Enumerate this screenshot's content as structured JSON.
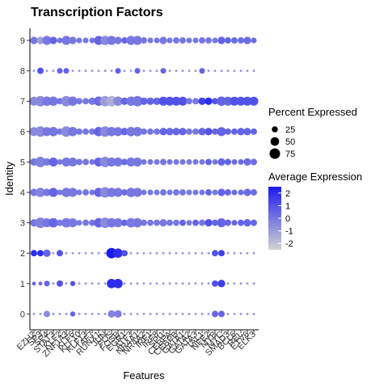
{
  "chart_data": {
    "type": "scatter",
    "subtype": "dot-plot",
    "title": "Transcription Factors",
    "xlabel": "Features",
    "ylabel": "Identity",
    "identities": [
      "0",
      "1",
      "2",
      "3",
      "4",
      "5",
      "6",
      "7",
      "8",
      "9"
    ],
    "features": [
      "EZH2",
      "SP3",
      "SP4",
      "STAT3",
      "KLF2",
      "ZNF143",
      "KLF6",
      "KLF10",
      "KLF13",
      "TAF7",
      "RUNX1",
      "JUN",
      "FOS",
      "FOSB",
      "EGR1",
      "ATF3",
      "NR4A1",
      "NR4A2",
      "IRF1",
      "IRF8",
      "SPI1",
      "CEBPA",
      "CEBPB",
      "GATA1",
      "GATA2",
      "GATA3",
      "TAL1",
      "NFE2",
      "MYB",
      "MYC",
      "SMAD3",
      "BCL6",
      "REL",
      "ETV6",
      "ELK3"
    ],
    "color_scale": {
      "min": -2.5,
      "max": 2.5,
      "low": "#d3d3d3",
      "high": "#1a1aef"
    },
    "size_legend": {
      "title": "Percent Expressed",
      "values": [
        25,
        50,
        75
      ]
    },
    "color_legend": {
      "title": "Average Expression",
      "ticks": [
        2,
        1,
        0,
        -1,
        -2
      ]
    },
    "rows": {
      "0": {
        "pct": [
          4,
          4,
          28,
          4,
          4,
          4,
          18,
          4,
          4,
          4,
          4,
          4,
          38,
          38,
          4,
          4,
          4,
          4,
          4,
          4,
          4,
          4,
          4,
          4,
          4,
          4,
          4,
          4,
          28,
          28,
          4,
          4,
          4,
          4,
          4
        ],
        "avg": [
          -1,
          -1,
          -0.5,
          -1,
          -1,
          -1,
          0.5,
          -1,
          -1,
          -1,
          -1,
          -1,
          -0.3,
          -0.2,
          -1,
          -1,
          -1,
          -1,
          -1,
          -1,
          -1,
          -1,
          -1,
          -1,
          -1,
          -1,
          -1,
          -1,
          0.5,
          0.5,
          -1,
          -1,
          -1,
          -1,
          -1
        ]
      },
      "1": {
        "pct": [
          10,
          10,
          22,
          4,
          28,
          4,
          18,
          4,
          4,
          4,
          4,
          4,
          60,
          60,
          4,
          4,
          4,
          4,
          4,
          4,
          4,
          4,
          4,
          4,
          4,
          4,
          4,
          4,
          28,
          38,
          4,
          4,
          4,
          4,
          4
        ],
        "avg": [
          0.5,
          0.5,
          0.5,
          -1,
          1,
          -1,
          1,
          -1,
          -1,
          -1,
          -1,
          -1,
          2,
          2,
          -1,
          -1,
          -1,
          -1,
          -1,
          -1,
          -1,
          -1,
          -1,
          -1,
          -1,
          -1,
          -1,
          -1,
          1,
          1.5,
          -1,
          -1,
          -1,
          -1,
          -1
        ]
      },
      "2": {
        "pct": [
          28,
          28,
          38,
          4,
          28,
          4,
          4,
          4,
          4,
          4,
          4,
          4,
          75,
          60,
          28,
          4,
          4,
          4,
          4,
          4,
          4,
          4,
          4,
          4,
          4,
          4,
          4,
          4,
          28,
          28,
          4,
          4,
          4,
          4,
          4
        ],
        "avg": [
          2,
          2,
          0.5,
          -1,
          1,
          -1,
          -1,
          -1,
          -1,
          -1,
          -1,
          -1,
          2.5,
          2,
          1,
          -1,
          -1,
          -1,
          -1,
          -1,
          -1,
          -1,
          -1,
          -1,
          -1,
          -1,
          -1,
          -1,
          1,
          1.5,
          -1,
          -1,
          -1,
          -1,
          -1
        ]
      },
      "3": {
        "pct": [
          38,
          75,
          55,
          60,
          28,
          60,
          55,
          22,
          28,
          28,
          60,
          75,
          60,
          55,
          28,
          60,
          60,
          28,
          28,
          28,
          38,
          28,
          28,
          28,
          22,
          28,
          28,
          38,
          28,
          55,
          28,
          22,
          28,
          38,
          28
        ],
        "avg": [
          0,
          -0.3,
          0,
          0.5,
          0,
          0,
          0,
          0,
          0,
          0,
          0.5,
          -0.5,
          0,
          0,
          0.5,
          0,
          0,
          0,
          0,
          0,
          0,
          0,
          0,
          0.5,
          0,
          0.5,
          0,
          1,
          0.5,
          0.5,
          0.5,
          0.5,
          0.5,
          0.5,
          0.5
        ]
      },
      "4": {
        "pct": [
          38,
          60,
          38,
          55,
          22,
          60,
          55,
          22,
          28,
          22,
          55,
          75,
          60,
          55,
          28,
          60,
          55,
          22,
          22,
          22,
          28,
          22,
          28,
          28,
          22,
          22,
          22,
          28,
          22,
          38,
          28,
          22,
          22,
          38,
          28
        ],
        "avg": [
          0,
          -0.3,
          0,
          0.5,
          0,
          0,
          0,
          0,
          0,
          0,
          0.5,
          -0.5,
          0,
          0,
          0.3,
          0,
          0,
          0,
          0,
          0,
          0,
          0,
          0,
          0,
          0,
          0,
          0,
          0.5,
          0,
          0.5,
          0.5,
          0.3,
          0.3,
          0.3,
          0.3
        ]
      },
      "5": {
        "pct": [
          38,
          75,
          38,
          55,
          22,
          55,
          55,
          28,
          28,
          22,
          55,
          75,
          55,
          55,
          28,
          55,
          55,
          22,
          22,
          22,
          28,
          22,
          22,
          22,
          22,
          22,
          22,
          28,
          22,
          38,
          28,
          22,
          22,
          38,
          28
        ],
        "avg": [
          0,
          -0.3,
          0,
          0.5,
          0,
          0,
          0,
          0,
          0,
          0,
          0.5,
          -0.5,
          0,
          0,
          0.3,
          0,
          0,
          0,
          0,
          0,
          0,
          0,
          0,
          0,
          0,
          0,
          0,
          0.5,
          0,
          0.5,
          0.5,
          0.3,
          0.3,
          0.3,
          0.3
        ]
      },
      "6": {
        "pct": [
          55,
          75,
          55,
          60,
          28,
          75,
          60,
          28,
          28,
          28,
          60,
          75,
          60,
          55,
          38,
          60,
          60,
          28,
          28,
          28,
          38,
          38,
          38,
          38,
          28,
          28,
          38,
          38,
          28,
          55,
          28,
          28,
          38,
          38,
          28
        ],
        "avg": [
          -0.5,
          -0.5,
          0,
          0,
          0,
          -0.5,
          0,
          0,
          0,
          0,
          0.5,
          -0.5,
          0,
          0,
          0.5,
          0,
          0,
          0,
          0,
          0,
          0.5,
          0.5,
          0.5,
          0.5,
          0,
          0,
          0.5,
          1,
          0.5,
          0.5,
          0.5,
          0.5,
          0.5,
          0.5,
          0.5
        ]
      },
      "7": {
        "pct": [
          55,
          75,
          60,
          60,
          28,
          75,
          60,
          28,
          28,
          38,
          60,
          75,
          75,
          60,
          38,
          60,
          75,
          38,
          38,
          38,
          55,
          55,
          55,
          55,
          28,
          28,
          38,
          38,
          28,
          60,
          55,
          55,
          55,
          55,
          55
        ],
        "avg": [
          -0.5,
          -0.5,
          0,
          0,
          0,
          -0.5,
          0,
          0,
          0,
          0,
          0.3,
          -1,
          -1.5,
          -0.5,
          0.5,
          0,
          0,
          0.5,
          0.5,
          0.5,
          1,
          1,
          1,
          1,
          0,
          0,
          1.5,
          2,
          1,
          0.5,
          0.5,
          1,
          1,
          1,
          1
        ]
      },
      "8": {
        "pct": [
          4,
          28,
          4,
          4,
          22,
          22,
          4,
          4,
          4,
          4,
          4,
          4,
          4,
          22,
          4,
          4,
          22,
          4,
          4,
          4,
          22,
          4,
          4,
          4,
          4,
          4,
          22,
          4,
          4,
          4,
          4,
          4,
          4,
          4,
          4
        ],
        "avg": [
          -1,
          1,
          -1,
          -1,
          0.5,
          0.5,
          -1,
          -1,
          -1,
          -1,
          -1,
          -1,
          -1,
          0.5,
          -1,
          -1,
          0.5,
          -1,
          -1,
          -1,
          0.5,
          -1,
          -1,
          -1,
          -1,
          -1,
          0.5,
          -1,
          -1,
          -1,
          -1,
          -1,
          -1,
          -1,
          -1
        ]
      },
      "9": {
        "pct": [
          38,
          38,
          55,
          38,
          22,
          55,
          38,
          22,
          22,
          22,
          55,
          60,
          55,
          38,
          28,
          55,
          55,
          28,
          22,
          22,
          38,
          22,
          28,
          28,
          22,
          22,
          28,
          28,
          22,
          38,
          28,
          28,
          28,
          38,
          22
        ],
        "avg": [
          0,
          -1,
          0,
          0.5,
          0,
          0,
          0,
          0,
          0,
          0,
          0.5,
          -0.5,
          0,
          0,
          0.5,
          0,
          0,
          0,
          0,
          0,
          0,
          0,
          0,
          0,
          0,
          0,
          0,
          0,
          0,
          0.5,
          0.5,
          0.3,
          0.3,
          0.3,
          0.3
        ]
      }
    }
  }
}
